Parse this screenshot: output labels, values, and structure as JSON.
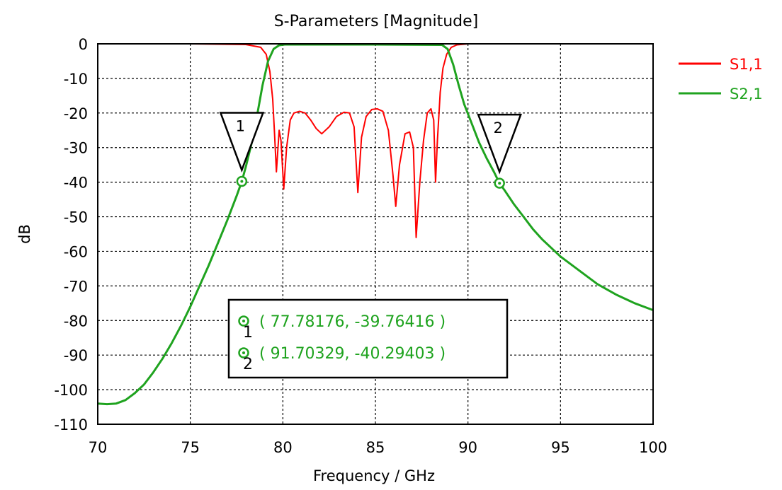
{
  "chart_data": {
    "type": "line",
    "title": "S-Parameters [Magnitude]",
    "xlabel": "Frequency / GHz",
    "ylabel": "dB",
    "xlim": [
      70,
      100
    ],
    "ylim": [
      -110,
      0
    ],
    "xticks": [
      70,
      75,
      80,
      85,
      90,
      95,
      100
    ],
    "yticks": [
      0,
      -10,
      -20,
      -30,
      -40,
      -50,
      -60,
      -70,
      -80,
      -90,
      -100,
      -110
    ],
    "grid": true,
    "legend_position": "right",
    "series": [
      {
        "name": "S1,1",
        "color": "#ff0000",
        "x": [
          70,
          75,
          78,
          78.8,
          79.1,
          79.3,
          79.45,
          79.55,
          79.65,
          79.8,
          79.9,
          80.05,
          80.2,
          80.4,
          80.6,
          80.9,
          81.2,
          81.5,
          81.8,
          82.1,
          82.5,
          82.9,
          83.3,
          83.6,
          83.85,
          84.05,
          84.25,
          84.5,
          84.8,
          85.1,
          85.4,
          85.7,
          85.95,
          86.1,
          86.3,
          86.6,
          86.85,
          87.05,
          87.2,
          87.4,
          87.6,
          87.8,
          88.0,
          88.15,
          88.25,
          88.35,
          88.5,
          88.65,
          88.85,
          89.1,
          89.4,
          90,
          95,
          100
        ],
        "values": [
          0,
          0,
          -0.2,
          -1,
          -3,
          -8,
          -16,
          -26,
          -37,
          -25,
          -28,
          -42,
          -30,
          -22,
          -20,
          -19.5,
          -20,
          -22,
          -24.5,
          -26,
          -24,
          -21,
          -19.8,
          -20,
          -24,
          -43,
          -27,
          -21,
          -19,
          -18.8,
          -19.5,
          -25,
          -38,
          -47,
          -35,
          -26,
          -25.5,
          -30,
          -56,
          -40,
          -28,
          -20,
          -18.8,
          -22,
          -40,
          -28,
          -14,
          -7,
          -3,
          -1,
          -0.3,
          0,
          0,
          0
        ]
      },
      {
        "name": "S2,1",
        "color": "#1fa31f",
        "x": [
          70,
          70.5,
          71,
          71.5,
          72,
          72.5,
          73,
          73.5,
          74,
          74.5,
          75,
          75.5,
          76,
          76.5,
          77,
          77.5,
          77.78176,
          78,
          78.3,
          78.6,
          78.9,
          79.2,
          79.5,
          79.8,
          80.1,
          85,
          88.6,
          88.9,
          89.2,
          89.5,
          89.8,
          90.2,
          90.6,
          91,
          91.4,
          91.70329,
          92,
          92.5,
          93,
          93.5,
          94,
          95,
          96,
          97,
          98,
          99,
          100
        ],
        "values": [
          -104,
          -104.2,
          -104,
          -103,
          -101,
          -98.5,
          -95,
          -91,
          -86.5,
          -81.5,
          -76,
          -70,
          -64,
          -57.5,
          -51,
          -44,
          -39.76,
          -35.5,
          -29,
          -21,
          -12,
          -5,
          -1.5,
          -0.4,
          -0.2,
          -0.2,
          -0.3,
          -1.5,
          -6,
          -12,
          -17.5,
          -23,
          -28.5,
          -33,
          -37,
          -40.29,
          -42.5,
          -46.5,
          -50,
          -53.5,
          -56.5,
          -61.5,
          -65.5,
          -69.5,
          -72.5,
          -75,
          -77
        ]
      }
    ],
    "markers": [
      {
        "id": "1",
        "x": 77.78176,
        "y": -39.76416,
        "label": "1",
        "readout": "( 77.78176, -39.76416 )",
        "readout_num": "1"
      },
      {
        "id": "2",
        "x": 91.70329,
        "y": -40.29403,
        "label": "2",
        "readout": "( 91.70329, -40.29403 )",
        "readout_num": "2"
      }
    ],
    "colors": {
      "s11": "#ff0000",
      "s21": "#1fa31f",
      "grid": "#000000",
      "frame": "#000000"
    }
  }
}
